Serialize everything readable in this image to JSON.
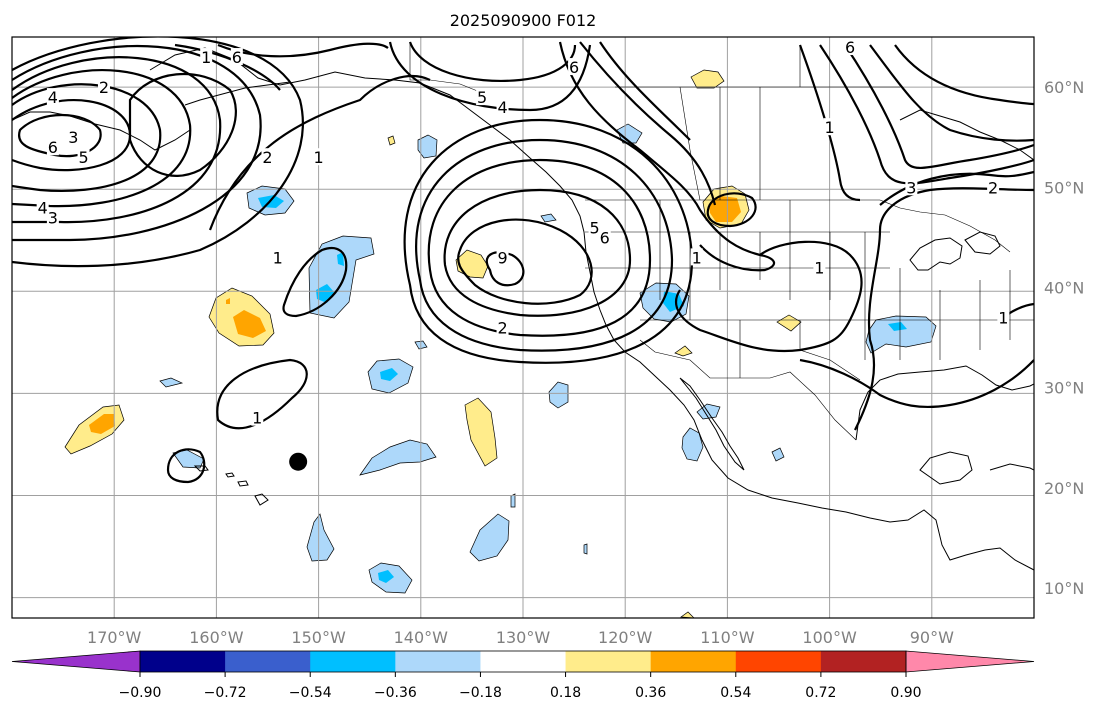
{
  "title": "2025090900 F012",
  "map": {
    "projection": "cylindrical",
    "lon_range": [
      -180,
      -80
    ],
    "lat_range": [
      7,
      65
    ],
    "gridlines": true,
    "lon_ticks": [
      {
        "lon": -170,
        "label": "170°W"
      },
      {
        "lon": -160,
        "label": "160°W"
      },
      {
        "lon": -150,
        "label": "150°W"
      },
      {
        "lon": -140,
        "label": "140°W"
      },
      {
        "lon": -130,
        "label": "130°W"
      },
      {
        "lon": -120,
        "label": "120°W"
      },
      {
        "lon": -110,
        "label": "110°W"
      },
      {
        "lon": -100,
        "label": "100°W"
      },
      {
        "lon": -90,
        "label": "90°W"
      }
    ],
    "lat_ticks": [
      {
        "lat": 60,
        "label": "60°N"
      },
      {
        "lat": 50,
        "label": "50°N"
      },
      {
        "lat": 40,
        "label": "40°N"
      },
      {
        "lat": 30,
        "label": "30°N"
      },
      {
        "lat": 20,
        "label": "20°N"
      },
      {
        "lat": 10,
        "label": "10°N"
      }
    ],
    "contour_labels": [
      {
        "text": "1",
        "lon": -161,
        "lat": 63
      },
      {
        "text": "2",
        "lon": -171,
        "lat": 60
      },
      {
        "text": "4",
        "lon": -176,
        "lat": 59
      },
      {
        "text": "3",
        "lon": -174,
        "lat": 55
      },
      {
        "text": "6",
        "lon": -176,
        "lat": 54
      },
      {
        "text": "5",
        "lon": -173,
        "lat": 53
      },
      {
        "text": "4",
        "lon": -177,
        "lat": 48
      },
      {
        "text": "3",
        "lon": -176,
        "lat": 47
      },
      {
        "text": "2",
        "lon": -155,
        "lat": 53
      },
      {
        "text": "1",
        "lon": -150,
        "lat": 53
      },
      {
        "text": "1",
        "lon": -154,
        "lat": 43
      },
      {
        "text": "1",
        "lon": -156,
        "lat": 27
      },
      {
        "text": "6",
        "lon": -158,
        "lat": 63
      },
      {
        "text": "5",
        "lon": -134,
        "lat": 59
      },
      {
        "text": "4",
        "lon": -132,
        "lat": 58
      },
      {
        "text": "6",
        "lon": -125,
        "lat": 62
      },
      {
        "text": "5",
        "lon": -123,
        "lat": 46
      },
      {
        "text": "6",
        "lon": -122,
        "lat": 45
      },
      {
        "text": "9",
        "lon": -132,
        "lat": 43
      },
      {
        "text": "2",
        "lon": -132,
        "lat": 36
      },
      {
        "text": "1",
        "lon": -113,
        "lat": 43
      },
      {
        "text": "1",
        "lon": -101,
        "lat": 42
      },
      {
        "text": "6",
        "lon": -98,
        "lat": 64
      },
      {
        "text": "1",
        "lon": -100,
        "lat": 56
      },
      {
        "text": "3",
        "lon": -92,
        "lat": 50
      },
      {
        "text": "2",
        "lon": -84,
        "lat": 50
      },
      {
        "text": "1",
        "lon": -83,
        "lat": 37
      }
    ],
    "marker": {
      "type": "filled-circle",
      "lon": -152,
      "lat": 22.6,
      "color": "#000000"
    }
  },
  "colorbar": {
    "extend": "both",
    "orientation": "horizontal",
    "colors": [
      "#9932cc",
      "#00008b",
      "#3a5fcd",
      "#00bfff",
      "#add8fa",
      "#ffffff",
      "#ffec8b",
      "#ffa500",
      "#ff4500",
      "#b22222",
      "#ff88aa"
    ],
    "boundaries": [
      -0.9,
      -0.72,
      -0.54,
      -0.36,
      -0.18,
      0.18,
      0.36,
      0.54,
      0.72,
      0.9
    ],
    "tick_labels": [
      "−0.90",
      "−0.72",
      "−0.54",
      "−0.36",
      "−0.18",
      "0.18",
      "0.36",
      "0.54",
      "0.72",
      "0.90"
    ]
  }
}
